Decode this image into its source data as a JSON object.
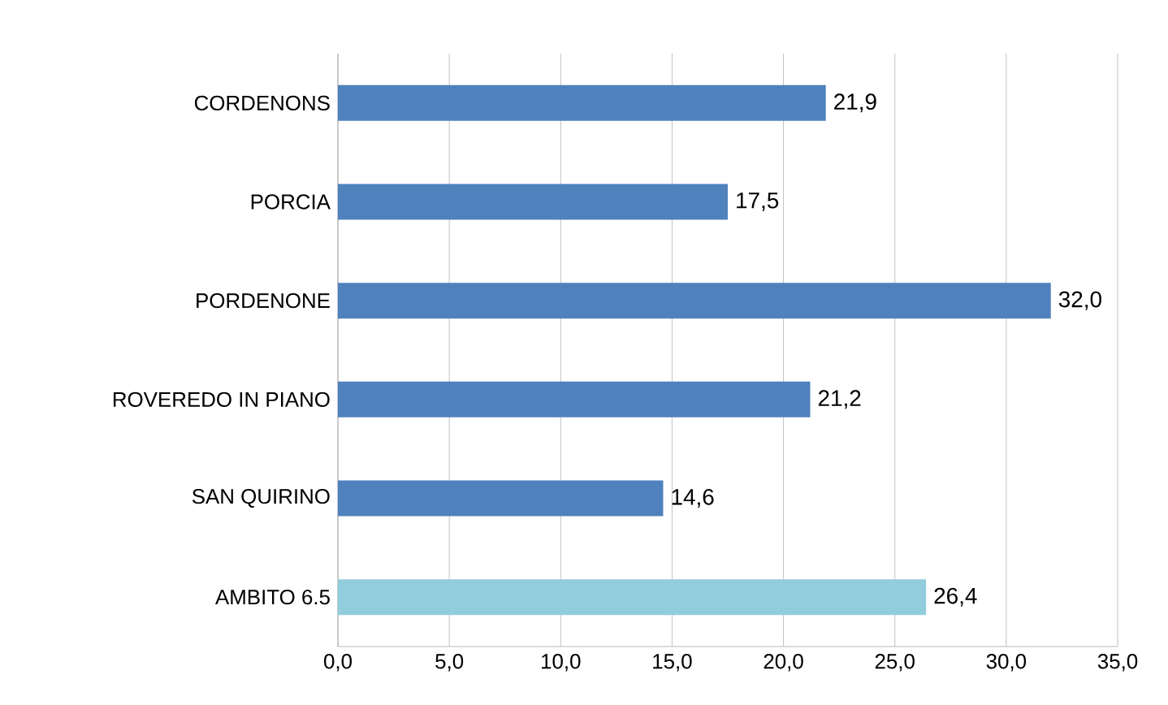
{
  "chart_data": {
    "type": "bar",
    "orientation": "horizontal",
    "categories": [
      "CORDENONS",
      "PORCIA",
      "PORDENONE",
      "ROVEREDO IN PIANO",
      "SAN QUIRINO",
      "AMBITO 6.5"
    ],
    "values": [
      21.9,
      17.5,
      32.0,
      21.2,
      14.6,
      26.4
    ],
    "colors": [
      "#4f81bd",
      "#4f81bd",
      "#4f81bd",
      "#4f81bd",
      "#4f81bd",
      "#92cddc"
    ],
    "value_labels": [
      "21,9",
      "17,5",
      "32,0",
      "21,2",
      "14,6",
      "26,4"
    ],
    "xlim": [
      0,
      35
    ],
    "xticks": [
      {
        "value": 0,
        "label": "0,0"
      },
      {
        "value": 5,
        "label": "5,0"
      },
      {
        "value": 10,
        "label": "10,0"
      },
      {
        "value": 15,
        "label": "15,0"
      },
      {
        "value": 20,
        "label": "20,0"
      },
      {
        "value": 25,
        "label": "25,0"
      },
      {
        "value": 30,
        "label": "30,0"
      },
      {
        "value": 35,
        "label": "35,0"
      }
    ],
    "grid": "x"
  }
}
